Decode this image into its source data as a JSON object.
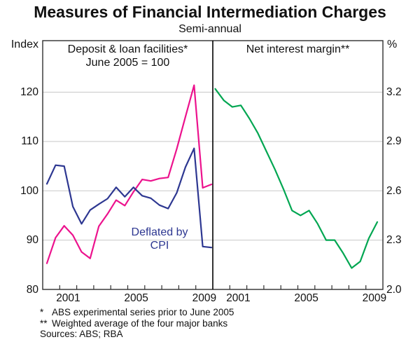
{
  "title": "Measures of Financial Intermediation Charges",
  "subtitle": "Semi-annual",
  "left_axis": {
    "unit": "Index",
    "tick_labels": [
      "120",
      "110",
      "100",
      "90",
      "80"
    ],
    "tick_values": [
      120,
      110,
      100,
      90,
      80
    ]
  },
  "right_axis": {
    "unit": "%",
    "tick_labels": [
      "3.2",
      "2.9",
      "2.6",
      "2.3",
      "2.0"
    ],
    "tick_values": [
      3.2,
      2.9,
      2.6,
      2.3,
      2.0
    ]
  },
  "x_year_labels": [
    "2001",
    "2005",
    "2009"
  ],
  "annotation": {
    "line1": "Deflated by",
    "line2": "CPI",
    "color": "#2d3791"
  },
  "footnotes": [
    {
      "marker": "*",
      "text": "ABS experimental series prior to June 2005"
    },
    {
      "marker": "**",
      "text": "Weighted average of the four major banks"
    }
  ],
  "sources": "Sources: ABS; RBA",
  "colors": {
    "deposit_loan_line": "#ec128d",
    "deflated_cpi_line": "#2d3791",
    "net_interest_margin_line": "#00a651",
    "gridline": "#c8c8c8",
    "axis": "#2f2f2f"
  },
  "chart_data": {
    "type": "line",
    "layout": "two-panel shared x-axis",
    "frequency": "semi-annual",
    "x_categories": [
      "2000H1",
      "2000H2",
      "2001H1",
      "2001H2",
      "2002H1",
      "2002H2",
      "2003H1",
      "2003H2",
      "2004H1",
      "2004H2",
      "2005H1",
      "2005H2",
      "2006H1",
      "2006H2",
      "2007H1",
      "2007H2",
      "2008H1",
      "2008H2",
      "2009H1",
      "2009H2"
    ],
    "x_range_years": [
      2000,
      2010
    ],
    "x_tick_years": [
      2001,
      2002,
      2003,
      2004,
      2005,
      2006,
      2007,
      2008,
      2009
    ],
    "grid": true,
    "panels": [
      {
        "title": "Deposit & loan facilities*",
        "subtitle": "June 2005 = 100",
        "axis_side": "left",
        "ylabel": "Index",
        "ylim": [
          80,
          130
        ],
        "yticks": [
          80,
          90,
          100,
          110,
          120
        ],
        "series": [
          {
            "name": "Deposit & loan facilities",
            "color": "#ec128d",
            "values": [
              85.3,
              90.5,
              92.9,
              91.0,
              87.6,
              86.3,
              92.8,
              95.3,
              98.1,
              97.0,
              99.8,
              102.3,
              102.0,
              102.5,
              102.7,
              108.5,
              115.0,
              121.4,
              100.6,
              101.3
            ]
          },
          {
            "name": "Deflated by CPI",
            "color": "#2d3791",
            "values": [
              101.4,
              105.2,
              105.0,
              96.8,
              93.3,
              96.1,
              97.3,
              98.4,
              100.7,
              98.8,
              100.7,
              99.0,
              98.5,
              97.1,
              96.4,
              99.6,
              104.8,
              108.6,
              88.7,
              88.5
            ]
          }
        ]
      },
      {
        "title": "Net interest margin**",
        "axis_side": "right",
        "ylabel": "%",
        "ylim": [
          2.0,
          3.35
        ],
        "yticks": [
          2.0,
          2.3,
          2.6,
          2.9,
          3.2
        ],
        "series": [
          {
            "name": "Net interest margin",
            "color": "#00a651",
            "values": [
              3.22,
              3.15,
              3.11,
              3.12,
              3.04,
              2.95,
              2.84,
              2.73,
              2.61,
              2.48,
              2.45,
              2.48,
              2.4,
              2.3,
              2.3,
              2.22,
              2.13,
              2.17,
              2.31,
              2.41
            ]
          }
        ]
      }
    ]
  }
}
